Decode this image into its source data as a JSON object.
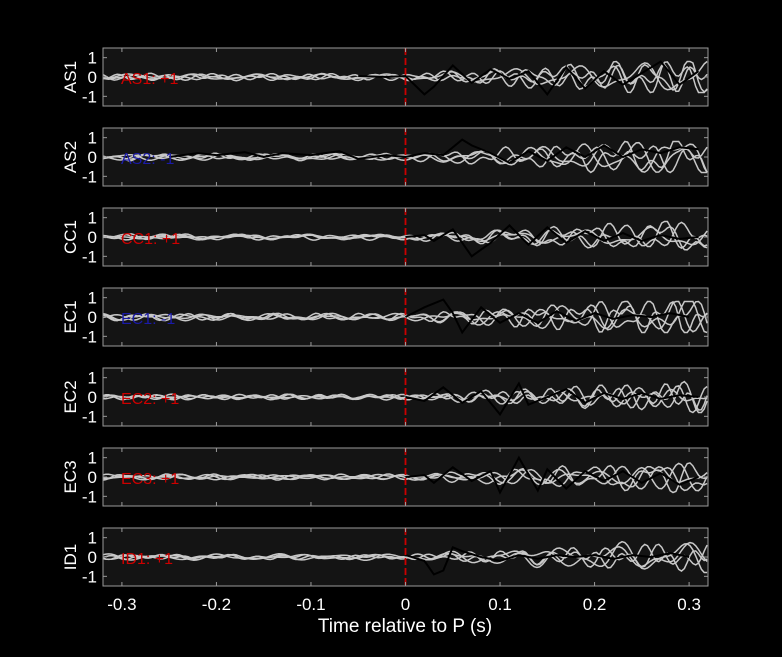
{
  "chart_data": {
    "type": "line",
    "xlabel": "Time relative to P (s)",
    "xlim": [
      -0.32,
      0.32
    ],
    "ylim": [
      -1.5,
      1.5
    ],
    "xticks": [
      -0.3,
      -0.2,
      -0.1,
      0,
      0.1,
      0.2,
      0.3
    ],
    "xtick_labels": [
      "-0.3",
      "-0.2",
      "-0.1",
      "0",
      "0.1",
      "0.2",
      "0.3"
    ],
    "yticks": [
      -1,
      0,
      1
    ],
    "ytick_labels": [
      "-1",
      "0",
      "1"
    ],
    "marker_x": 0,
    "colors": {
      "background": "#000000",
      "axes_face": "#141414",
      "spine": "#9a9a9a",
      "text": "#ffffff",
      "gray_trace": "#c8c8c8",
      "black_trace": "#000000",
      "marker": "#cc0000",
      "polarity_positive": "#cc0000",
      "polarity_negative": "#1a1aa6"
    },
    "panels": [
      {
        "station": "AS1",
        "polarity_label": "AS1: +1",
        "polarity_color": "#cc0000",
        "black_trace": {
          "x": [
            -0.05,
            -0.02,
            0.0,
            0.02,
            0.03,
            0.05,
            0.07,
            0.09,
            0.11,
            0.13,
            0.15,
            0.17,
            0.19,
            0.21,
            0.23,
            0.25,
            0.27,
            0.29,
            0.31
          ],
          "y": [
            0.05,
            0.0,
            0.05,
            -0.9,
            -0.5,
            0.6,
            -0.3,
            0.4,
            -0.1,
            0.3,
            -0.9,
            0.5,
            -0.6,
            0.3,
            -0.4,
            0.2,
            0.8,
            -0.4,
            0.3
          ]
        }
      },
      {
        "station": "AS2",
        "polarity_label": "AS2: -1",
        "polarity_color": "#1a1aa6",
        "black_trace": {
          "x": [
            -0.25,
            -0.22,
            -0.2,
            -0.17,
            -0.15,
            -0.13,
            -0.1,
            -0.07,
            -0.05,
            -0.02,
            0.0,
            0.02,
            0.04,
            0.06,
            0.07,
            0.09,
            0.11,
            0.13,
            0.15,
            0.17,
            0.19,
            0.21,
            0.23,
            0.25,
            0.27,
            0.29,
            0.31
          ],
          "y": [
            0.0,
            0.2,
            0.1,
            0.25,
            0.0,
            0.2,
            0.1,
            0.3,
            -0.1,
            0.1,
            0.0,
            0.2,
            0.1,
            0.9,
            0.6,
            0.2,
            -0.3,
            0.3,
            -0.2,
            0.5,
            0.0,
            0.6,
            0.0,
            0.4,
            0.2,
            0.5,
            0.4
          ]
        }
      },
      {
        "station": "CC1",
        "polarity_label": "CC1: +1",
        "polarity_color": "#cc0000",
        "black_trace": {
          "x": [
            0.0,
            0.02,
            0.03,
            0.05,
            0.07,
            0.09,
            0.11,
            0.13,
            0.15,
            0.17,
            0.19,
            0.21,
            0.23,
            0.25,
            0.27,
            0.29,
            0.31
          ],
          "y": [
            0.0,
            0.1,
            -0.2,
            0.4,
            -1.0,
            -0.3,
            0.6,
            -0.4,
            0.5,
            -0.3,
            0.3,
            -0.2,
            0.2,
            -0.2,
            0.1,
            -0.1,
            0.0
          ]
        }
      },
      {
        "station": "EC1",
        "polarity_label": "EC1: -1",
        "polarity_color": "#1a1aa6",
        "black_trace": {
          "x": [
            0.0,
            0.02,
            0.04,
            0.05,
            0.06,
            0.08,
            0.1,
            0.12,
            0.14,
            0.16,
            0.18,
            0.2,
            0.22,
            0.24,
            0.26,
            0.28,
            0.3
          ],
          "y": [
            0.0,
            0.5,
            0.9,
            0.2,
            -0.8,
            0.5,
            -0.3,
            0.2,
            -0.3,
            0.3,
            -0.2,
            0.2,
            -0.1,
            0.1,
            0.0,
            0.2,
            0.0
          ]
        }
      },
      {
        "station": "EC2",
        "polarity_label": "EC2: +1",
        "polarity_color": "#cc0000",
        "black_trace": {
          "x": [
            0.0,
            0.02,
            0.04,
            0.06,
            0.08,
            0.1,
            0.12,
            0.13,
            0.15,
            0.17,
            0.19,
            0.21,
            0.23,
            0.25,
            0.27,
            0.29,
            0.31
          ],
          "y": [
            0.0,
            -0.2,
            0.5,
            -0.3,
            0.3,
            -0.9,
            0.7,
            -0.4,
            0.0,
            0.4,
            -0.3,
            0.2,
            -0.1,
            0.2,
            -0.1,
            0.1,
            0.0
          ]
        }
      },
      {
        "station": "EC3",
        "polarity_label": "EC3: +1",
        "polarity_color": "#cc0000",
        "black_trace": {
          "x": [
            0.0,
            0.02,
            0.03,
            0.05,
            0.07,
            0.09,
            0.1,
            0.12,
            0.14,
            0.15,
            0.17,
            0.19,
            0.21,
            0.23,
            0.25,
            0.27,
            0.29,
            0.31
          ],
          "y": [
            0.0,
            0.1,
            -0.3,
            0.5,
            -0.2,
            0.3,
            -0.8,
            1.0,
            -0.7,
            0.4,
            -0.6,
            0.3,
            -0.2,
            0.3,
            -0.3,
            0.2,
            -0.4,
            0.0
          ]
        }
      },
      {
        "station": "ID1",
        "polarity_label": "ID1: +1",
        "polarity_color": "#cc0000",
        "black_trace": {
          "x": [
            0.0,
            0.02,
            0.03,
            0.04,
            0.05,
            0.06,
            0.08,
            0.1,
            0.12,
            0.14,
            0.16,
            0.18,
            0.2,
            0.22,
            0.24,
            0.26,
            0.28,
            0.3
          ],
          "y": [
            0.1,
            -0.2,
            -0.9,
            -0.7,
            0.5,
            0.3,
            0.0,
            -0.2,
            0.1,
            -0.1,
            0.1,
            0.0,
            0.1,
            -0.1,
            0.1,
            0.0,
            0.2,
            0.0
          ]
        }
      }
    ]
  }
}
